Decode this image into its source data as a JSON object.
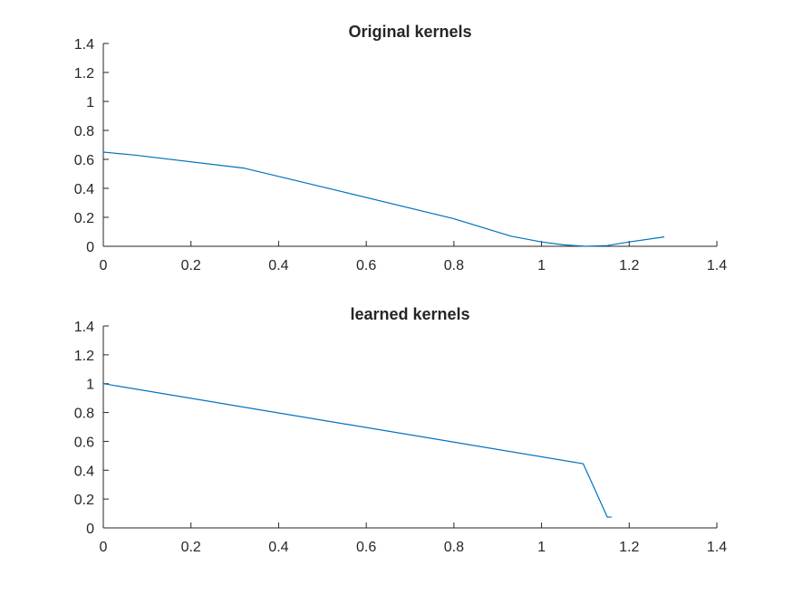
{
  "chart_data": [
    {
      "type": "line",
      "title": "Original kernels",
      "xlim": [
        0,
        1.4
      ],
      "ylim": [
        0,
        1.4
      ],
      "xticks": [
        "0",
        "0.2",
        "0.4",
        "0.6",
        "0.8",
        "1",
        "1.2",
        "1.4"
      ],
      "yticks": [
        "0",
        "0.2",
        "0.4",
        "0.6",
        "0.8",
        "1",
        "1.2",
        "1.4"
      ],
      "grid": false,
      "series": [
        {
          "color": "#0072BD",
          "x": [
            0,
            0.07,
            0.32,
            0.5,
            0.8,
            0.93,
            1.0,
            1.05,
            1.1,
            1.15,
            1.2,
            1.28
          ],
          "y": [
            0.65,
            0.63,
            0.54,
            0.41,
            0.19,
            0.07,
            0.03,
            0.01,
            0.0,
            0.005,
            0.03,
            0.065
          ]
        }
      ]
    },
    {
      "type": "line",
      "title": "learned kernels",
      "xlim": [
        0,
        1.4
      ],
      "ylim": [
        0,
        1.4
      ],
      "xticks": [
        "0",
        "0.2",
        "0.4",
        "0.6",
        "0.8",
        "1",
        "1.2",
        "1.4"
      ],
      "yticks": [
        "0",
        "0.2",
        "0.4",
        "0.6",
        "0.8",
        "1",
        "1.2",
        "1.4"
      ],
      "grid": false,
      "series": [
        {
          "color": "#0072BD",
          "x": [
            0,
            1.095,
            1.15,
            1.16
          ],
          "y": [
            1.0,
            0.445,
            0.075,
            0.075
          ]
        }
      ]
    }
  ]
}
